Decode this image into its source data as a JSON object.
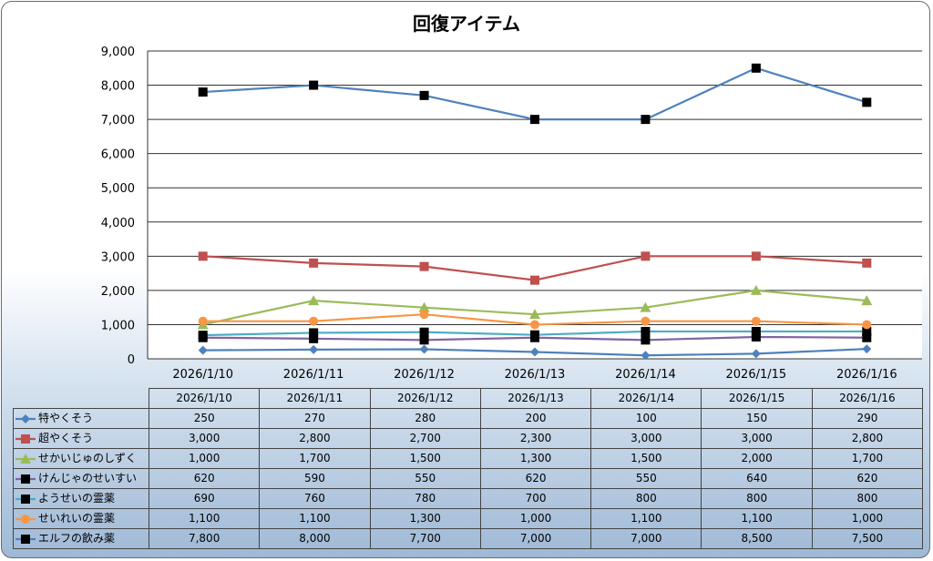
{
  "chart_data": {
    "type": "line",
    "title": "回復アイテム",
    "categories": [
      "2026/1/10",
      "2026/1/11",
      "2026/1/12",
      "2026/1/13",
      "2026/1/14",
      "2026/1/15",
      "2026/1/16"
    ],
    "ylim": [
      0,
      9000
    ],
    "yticks": [
      "0",
      "1,000",
      "2,000",
      "3,000",
      "4,000",
      "5,000",
      "6,000",
      "7,000",
      "8,000",
      "9,000"
    ],
    "grid": true,
    "legend": "data-table",
    "series": [
      {
        "name": "特やくそう",
        "color": "#4f81bd",
        "marker": "diamond",
        "values": [
          250,
          270,
          280,
          200,
          100,
          150,
          290
        ],
        "labels": [
          "250",
          "270",
          "280",
          "200",
          "100",
          "150",
          "290"
        ]
      },
      {
        "name": "超やくそう",
        "color": "#c0504d",
        "marker": "square",
        "values": [
          3000,
          2800,
          2700,
          2300,
          3000,
          3000,
          2800
        ],
        "labels": [
          "3,000",
          "2,800",
          "2,700",
          "2,300",
          "3,000",
          "3,000",
          "2,800"
        ]
      },
      {
        "name": "せかいじゅのしずく",
        "color": "#9bbb59",
        "marker": "triangle",
        "values": [
          1000,
          1700,
          1500,
          1300,
          1500,
          2000,
          1700
        ],
        "labels": [
          "1,000",
          "1,700",
          "1,500",
          "1,300",
          "1,500",
          "2,000",
          "1,700"
        ]
      },
      {
        "name": "けんじゃのせいすい",
        "color": "#8064a2",
        "marker": "blacksquare",
        "values": [
          620,
          590,
          550,
          620,
          550,
          640,
          620
        ],
        "labels": [
          "620",
          "590",
          "550",
          "620",
          "550",
          "640",
          "620"
        ]
      },
      {
        "name": "ようせいの霊薬",
        "color": "#4bacc6",
        "marker": "blacksquare",
        "values": [
          690,
          760,
          780,
          700,
          800,
          800,
          800
        ],
        "labels": [
          "690",
          "760",
          "780",
          "700",
          "800",
          "800",
          "800"
        ]
      },
      {
        "name": "せいれいの霊薬",
        "color": "#f79646",
        "marker": "circle",
        "values": [
          1100,
          1100,
          1300,
          1000,
          1100,
          1100,
          1000
        ],
        "labels": [
          "1,100",
          "1,100",
          "1,300",
          "1,000",
          "1,100",
          "1,100",
          "1,000"
        ]
      },
      {
        "name": "エルフの飲み薬",
        "color": "#4f81bd",
        "marker": "blacksquare",
        "values": [
          7800,
          8000,
          7700,
          7000,
          7000,
          8500,
          7500
        ],
        "labels": [
          "7,800",
          "8,000",
          "7,700",
          "7,000",
          "7,000",
          "8,500",
          "7,500"
        ]
      }
    ]
  }
}
